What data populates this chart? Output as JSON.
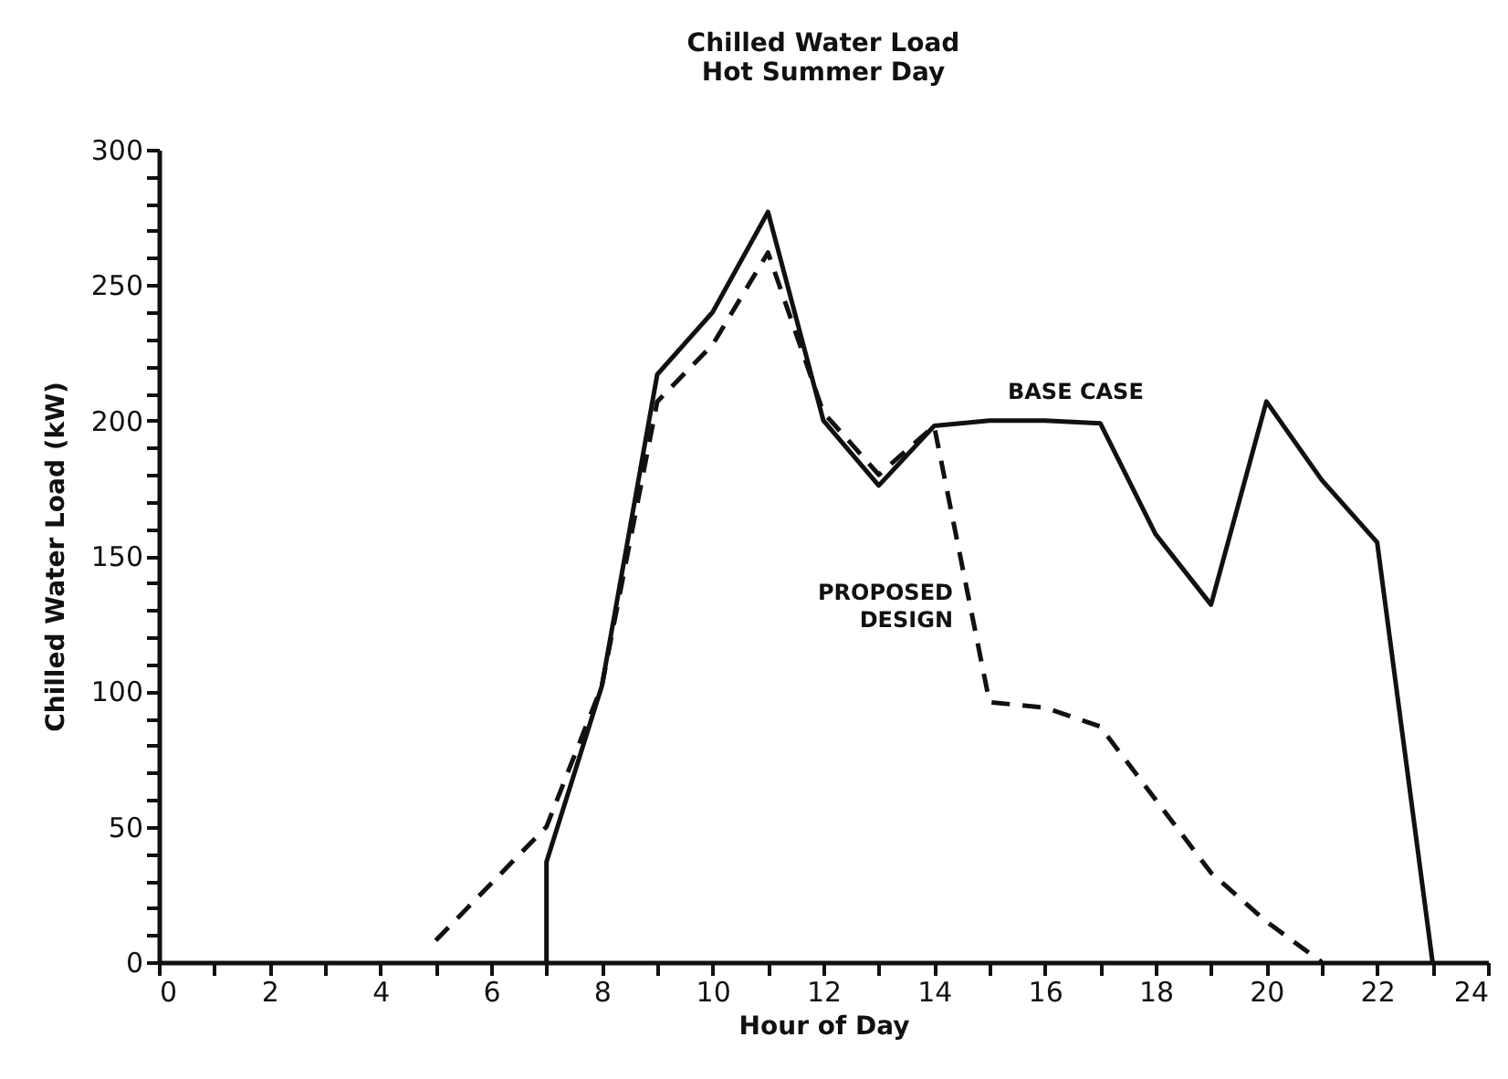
{
  "chart_data": {
    "type": "line",
    "title": "Chilled Water Load",
    "subtitle": "Hot Summer Day",
    "xlabel": "Hour of Day",
    "ylabel": "Chilled Water Load (kW)",
    "xlim": [
      0,
      24
    ],
    "ylim": [
      0,
      300
    ],
    "xticks": [
      0,
      {
        "value": 1,
        "label": null
      },
      2,
      {
        "value": 3,
        "label": null
      },
      4,
      {
        "value": 5,
        "label": null
      },
      6,
      {
        "value": 7,
        "label": null
      },
      8,
      {
        "value": 9,
        "label": null
      },
      10,
      {
        "value": 11,
        "label": null
      },
      12,
      {
        "value": 13,
        "label": null
      },
      14,
      {
        "value": 15,
        "label": null
      },
      16,
      {
        "value": 17,
        "label": null
      },
      18,
      {
        "value": 19,
        "label": null
      },
      20,
      {
        "value": 21,
        "label": null
      },
      22,
      {
        "value": 23,
        "label": null
      },
      24
    ],
    "yticks": [
      0,
      {
        "value": 10,
        "label": null
      },
      {
        "value": 20,
        "label": null
      },
      {
        "value": 30,
        "label": null
      },
      {
        "value": 40,
        "label": null
      },
      50,
      {
        "value": 60,
        "label": null
      },
      {
        "value": 70,
        "label": null
      },
      {
        "value": 80,
        "label": null
      },
      {
        "value": 90,
        "label": null
      },
      100,
      {
        "value": 110,
        "label": null
      },
      {
        "value": 120,
        "label": null
      },
      {
        "value": 130,
        "label": null
      },
      {
        "value": 140,
        "label": null
      },
      150,
      {
        "value": 160,
        "label": null
      },
      {
        "value": 170,
        "label": null
      },
      {
        "value": 180,
        "label": null
      },
      {
        "value": 190,
        "label": null
      },
      200,
      {
        "value": 210,
        "label": null
      },
      {
        "value": 220,
        "label": null
      },
      {
        "value": 230,
        "label": null
      },
      {
        "value": 240,
        "label": null
      },
      250,
      {
        "value": 260,
        "label": null
      },
      {
        "value": 270,
        "label": null
      },
      {
        "value": 280,
        "label": null
      },
      {
        "value": 290,
        "label": null
      },
      300
    ],
    "grid": false,
    "series": [
      {
        "name": "BASE CASE",
        "color": "#111111",
        "line_style": "solid",
        "x": [
          7,
          7,
          8,
          9,
          10,
          11,
          12,
          13,
          14,
          15,
          16,
          17,
          18,
          19,
          20,
          21,
          22,
          23
        ],
        "values": [
          0,
          37,
          102,
          217,
          240,
          277,
          200,
          176,
          198,
          200,
          200,
          199,
          158,
          132,
          207,
          178,
          155,
          0
        ]
      },
      {
        "name": "PROPOSED DESIGN",
        "color": "#111111",
        "line_style": "dashed",
        "x": [
          5,
          7,
          8,
          9,
          10,
          11,
          12,
          13,
          14,
          15,
          16,
          17,
          18,
          19,
          20,
          21
        ],
        "values": [
          8,
          50,
          102,
          207,
          228,
          262,
          203,
          180,
          198,
          96,
          94,
          87,
          60,
          33,
          15,
          0
        ]
      }
    ]
  }
}
